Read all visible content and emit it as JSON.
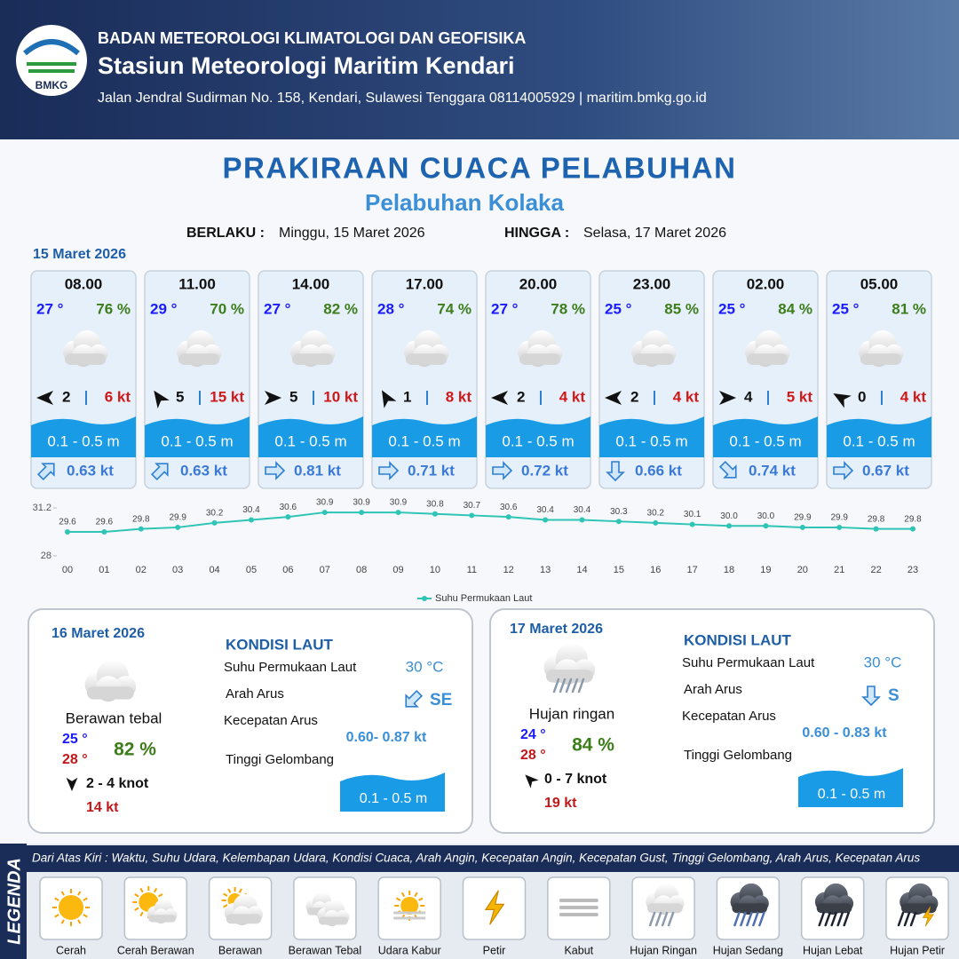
{
  "header": {
    "agency": "BADAN METEOROLOGI KLIMATOLOGI DAN GEOFISIKA",
    "station": "Stasiun Meteorologi Maritim Kendari",
    "address": "Jalan Jendral Sudirman No. 158, Kendari, Sulawesi Tenggara  08114005929 | maritim.bmkg.go.id",
    "logo_text": "BMKG"
  },
  "forecast": {
    "title": "PRAKIRAAN CUACA PELABUHAN",
    "subtitle": "Pelabuhan Kolaka",
    "valid_from_label": "BERLAKU :",
    "valid_from": "Minggu, 15 Maret 2026",
    "valid_to_label": "HINGGA :",
    "valid_to": "Selasa, 17 Maret 2026"
  },
  "day1": {
    "date": "15 Maret 2026",
    "slots": [
      {
        "time": "08.00",
        "temp": "27 °",
        "humidity": "76 %",
        "wind_speed": "2",
        "gust": "6 kt",
        "wave": "0.1 - 0.5 m",
        "current": "0.63 kt"
      },
      {
        "time": "11.00",
        "temp": "29 °",
        "humidity": "70 %",
        "wind_speed": "5",
        "gust": "15 kt",
        "wave": "0.1 - 0.5 m",
        "current": "0.63 kt"
      },
      {
        "time": "14.00",
        "temp": "27 °",
        "humidity": "82 %",
        "wind_speed": "5",
        "gust": "10 kt",
        "wave": "0.1 - 0.5 m",
        "current": "0.81 kt"
      },
      {
        "time": "17.00",
        "temp": "28 °",
        "humidity": "74 %",
        "wind_speed": "1",
        "gust": "8 kt",
        "wave": "0.1 - 0.5 m",
        "current": "0.71 kt"
      },
      {
        "time": "20.00",
        "temp": "27 °",
        "humidity": "78 %",
        "wind_speed": "2",
        "gust": "4 kt",
        "wave": "0.1 - 0.5 m",
        "current": "0.72 kt"
      },
      {
        "time": "23.00",
        "temp": "25 °",
        "humidity": "85 %",
        "wind_speed": "2",
        "gust": "4 kt",
        "wave": "0.1 - 0.5 m",
        "current": "0.66 kt"
      },
      {
        "time": "02.00",
        "temp": "25 °",
        "humidity": "84 %",
        "wind_speed": "4",
        "gust": "5 kt",
        "wave": "0.1 - 0.5 m",
        "current": "0.74 kt"
      },
      {
        "time": "05.00",
        "temp": "25 °",
        "humidity": "81 %",
        "wind_speed": "0",
        "gust": "4 kt",
        "wave": "0.1 - 0.5 m",
        "current": "0.67 kt"
      }
    ]
  },
  "chart_data": {
    "type": "line",
    "categories": [
      "00",
      "01",
      "02",
      "03",
      "04",
      "05",
      "06",
      "07",
      "08",
      "09",
      "10",
      "11",
      "12",
      "13",
      "14",
      "15",
      "16",
      "17",
      "18",
      "19",
      "20",
      "21",
      "22",
      "23"
    ],
    "series": [
      {
        "name": "Suhu Permukaan Laut",
        "color": "#2ec4b6",
        "values": [
          29.6,
          29.6,
          29.8,
          29.9,
          30.2,
          30.4,
          30.6,
          30.9,
          30.9,
          30.9,
          30.8,
          30.7,
          30.6,
          30.4,
          30.4,
          30.3,
          30.2,
          30.1,
          30.0,
          30.0,
          29.9,
          29.9,
          29.8,
          29.8
        ],
        "value_labels": [
          "29.6",
          "29.6",
          "29.8",
          "29.9",
          "30.2",
          "30.4",
          "30.6",
          "30.9",
          "30.9",
          "30.9",
          "30.8",
          "30.7",
          "30.6",
          "30.4",
          "30.4",
          "30.3",
          "30.2",
          "30.1",
          "30.0",
          "30.0",
          "29.9",
          "29.9",
          "29.8",
          "29.8"
        ]
      }
    ],
    "ylim": [
      28,
      31.2
    ],
    "yticks": [
      28,
      31.2
    ],
    "legend": "bottom"
  },
  "day2": {
    "date": "16 Maret 2026",
    "condition": "Berawan tebal",
    "temp_min": "25 °",
    "temp_max": "28 °",
    "humidity": "82 %",
    "wind": "2  - 4 knot",
    "gust": "14 kt",
    "sea_title": "KONDISI LAUT",
    "sst_label": "Suhu Permukaan Laut",
    "sst": "30 °C",
    "current_dir_label": "Arah Arus",
    "current_dir": "SE",
    "current_speed_label": "Kecepatan Arus",
    "current_speed": "0.60- 0.87 kt",
    "wave_label": "Tinggi Gelombang",
    "wave": "0.1 - 0.5 m"
  },
  "day3": {
    "date": "17 Maret 2026",
    "condition": "Hujan ringan",
    "temp_min": "24 °",
    "temp_max": "28 °",
    "humidity": "84 %",
    "wind": "0  - 7 knot",
    "gust": "19 kt",
    "sea_title": "KONDISI LAUT",
    "sst_label": "Suhu Permukaan Laut",
    "sst": "30 °C",
    "current_dir_label": "Arah Arus",
    "current_dir": "S",
    "current_speed_label": "Kecepatan Arus",
    "current_speed": "0.60 - 0.83 kt",
    "wave_label": "Tinggi Gelombang",
    "wave": "0.1 - 0.5 m"
  },
  "legend": {
    "title": "LEGENDA",
    "description": "Dari Atas Kiri : Waktu, Suhu Udara, Kelembapan Udara, Kondisi Cuaca, Arah Angin, Kecepatan Angin, Kecepatan Gust, Tinggi Gelombang, Arah Arus, Kecepatan Arus",
    "items": [
      "Cerah",
      "Cerah Berawan",
      "Berawan",
      "Berawan Tebal",
      "Udara Kabur",
      "Petir",
      "Kabut",
      "Hujan Ringan",
      "Hujan Sedang",
      "Hujan Lebat",
      "Hujan Petir"
    ]
  }
}
